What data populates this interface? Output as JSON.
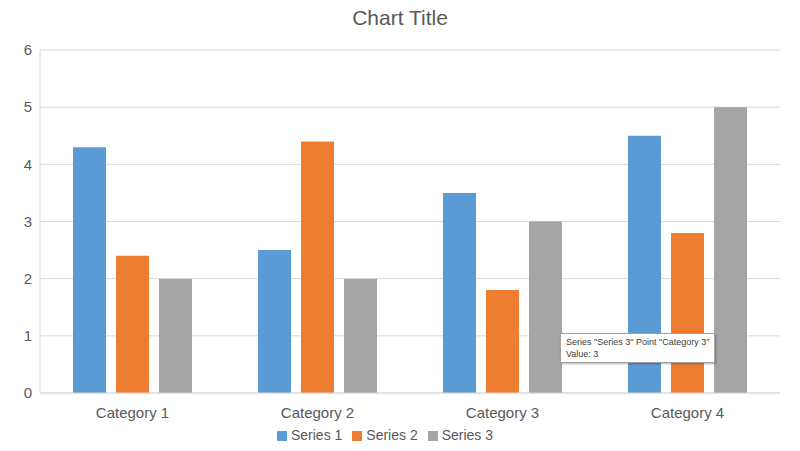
{
  "chart_data": {
    "type": "bar",
    "title": "Chart Title",
    "categories": [
      "Category 1",
      "Category 2",
      "Category 3",
      "Category 4"
    ],
    "series": [
      {
        "name": "Series 1",
        "color": "#5b9bd5",
        "values": [
          4.3,
          2.5,
          3.5,
          4.5
        ]
      },
      {
        "name": "Series 2",
        "color": "#ed7d31",
        "values": [
          2.4,
          4.4,
          1.8,
          2.8
        ]
      },
      {
        "name": "Series 3",
        "color": "#a5a5a5",
        "values": [
          2,
          2,
          3,
          5
        ]
      }
    ],
    "ylim": [
      0,
      6
    ],
    "yticks": [
      0,
      1,
      2,
      3,
      4,
      5,
      6
    ],
    "grid": true,
    "legend": "bottom",
    "annotations": [
      "Series \"Series 3\" Point \"Category 3\"",
      "Value: 3"
    ]
  }
}
